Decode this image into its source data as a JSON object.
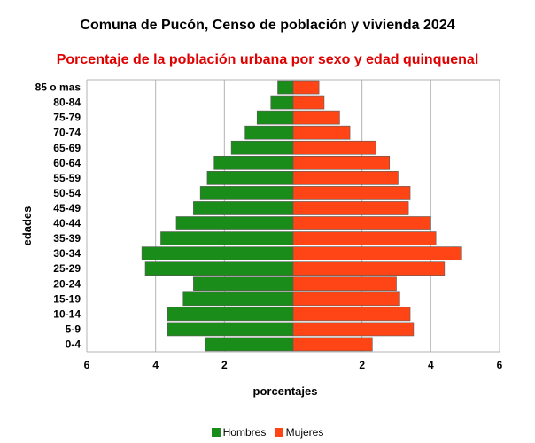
{
  "chart_data": {
    "type": "bar",
    "orientation": "horizontal",
    "layout": "population-pyramid",
    "title": "Comuna de Pucón, Censo de población y vivienda 2024",
    "subtitle": "Porcentaje de la población urbana por sexo y edad quinquenal",
    "subtitle_color": "#e00000",
    "xlabel": "porcentajes",
    "ylabel": "edades",
    "xlim": [
      -6,
      6
    ],
    "xticks": [
      -6,
      -4,
      -2,
      2,
      4,
      6
    ],
    "xtick_labels": [
      "6",
      "4",
      "2",
      "2",
      "4",
      "6"
    ],
    "grid": true,
    "legend_position": "bottom",
    "categories": [
      "85 o mas",
      "80-84",
      "75-79",
      "70-74",
      "65-69",
      "60-64",
      "55-59",
      "50-54",
      "45-49",
      "40-44",
      "35-39",
      "30-34",
      "25-29",
      "20-24",
      "15-19",
      "10-14",
      "5-9",
      "0-4"
    ],
    "series": [
      {
        "name": "Hombres",
        "color": "#1a8c1a",
        "side": "left",
        "values": [
          0.45,
          0.65,
          1.05,
          1.4,
          1.8,
          2.3,
          2.5,
          2.7,
          2.9,
          3.4,
          3.85,
          4.4,
          4.3,
          2.9,
          3.2,
          3.65,
          3.65,
          2.55
        ]
      },
      {
        "name": "Mujeres",
        "color": "#ff4516",
        "side": "right",
        "values": [
          0.75,
          0.9,
          1.35,
          1.65,
          2.4,
          2.8,
          3.05,
          3.4,
          3.35,
          4.0,
          4.15,
          4.9,
          4.4,
          3.0,
          3.1,
          3.4,
          3.5,
          2.3
        ]
      }
    ]
  }
}
